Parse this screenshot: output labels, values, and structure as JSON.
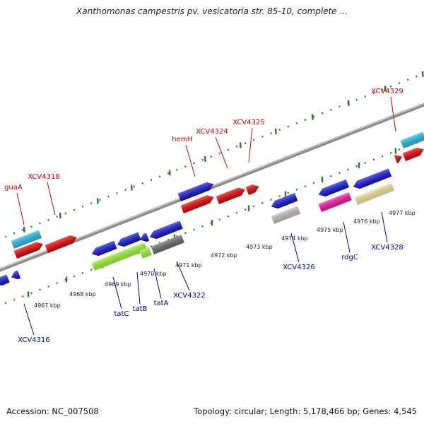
{
  "title": "Xanthomonas campestris pv. vesicatoria str. 85-10, complete ...",
  "footer": {
    "accession": "Accession: NC_007508",
    "topology": "Topology: circular; Length: 5,178,466 bp; Genes: 4,545"
  },
  "colors": {
    "backbone": "#8c8c8c",
    "tick_dash": "#2d7a2d",
    "label_top": "#cc0000",
    "label_bottom": "#0000aa"
  },
  "kbp_labels": [
    "4967 kbp",
    "4968 kbp",
    "4969 kbp",
    "4970 kbp",
    "4971 kbp",
    "4972 kbp",
    "4973 kbp",
    "4974 kbp",
    "4975 kbp",
    "4976 kbp",
    "4977 kbp"
  ],
  "top_gene_labels": [
    "guaA",
    "XCV4318",
    "hemH",
    "XCV4324",
    "XCV4325",
    "XCV4329"
  ],
  "bottom_gene_labels": [
    "XCV4316",
    "tatC",
    "tatB",
    "tatA",
    "XCV4322",
    "XCV4326",
    "rdgC",
    "XCV4328"
  ]
}
